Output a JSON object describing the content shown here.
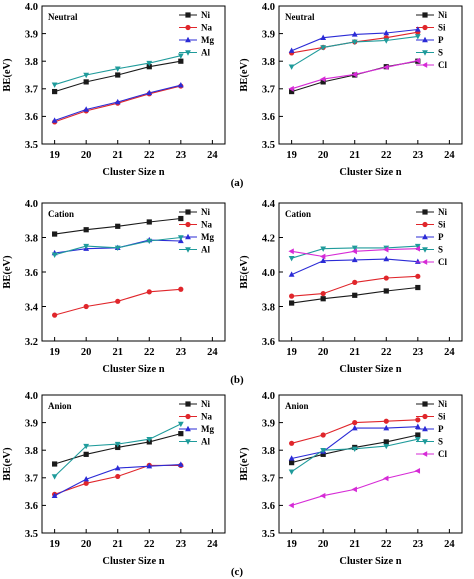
{
  "colors": {
    "Ni": "#1a1a1a",
    "Na": "#e0262b",
    "Mg": "#2b2bd6",
    "Al": "#1f9b9b",
    "Si": "#e0262b",
    "P": "#2b2bd6",
    "S": "#1f9b9b",
    "Cl": "#d62ad6"
  },
  "markers": {
    "Ni": "square",
    "Na": "circle",
    "Si": "circle",
    "Mg": "triangle-up",
    "P": "triangle-up",
    "Al": "triangle-down",
    "S": "triangle-down",
    "Cl": "triangle-left"
  },
  "section_labels": [
    "(a)",
    "(b)",
    "(c)"
  ],
  "chart_data": [
    {
      "type": "line",
      "panel_label": "Neutral",
      "xlabel": "Cluster Size n",
      "ylabel": "BE(eV)",
      "xlim": [
        18.6,
        24.4
      ],
      "xticks": [
        "19",
        "20",
        "21",
        "22",
        "23",
        "24"
      ],
      "ylim": [
        3.5,
        4.0
      ],
      "yticks": [
        "3.5",
        "3.6",
        "3.7",
        "3.8",
        "3.9",
        "4.0"
      ],
      "legend_position": "top-right",
      "x": [
        19,
        20,
        21,
        22,
        23
      ],
      "series": [
        {
          "name": "Ni",
          "values": [
            3.69,
            3.725,
            3.75,
            3.78,
            3.8
          ]
        },
        {
          "name": "Na",
          "values": [
            3.58,
            3.62,
            3.648,
            3.682,
            3.71
          ]
        },
        {
          "name": "Mg",
          "values": [
            3.585,
            3.625,
            3.652,
            3.685,
            3.713
          ]
        },
        {
          "name": "Al",
          "values": [
            3.715,
            3.75,
            3.773,
            3.793,
            3.82
          ]
        }
      ]
    },
    {
      "type": "line",
      "panel_label": "Neutral",
      "xlabel": "Cluster Size n",
      "ylabel": "BE(eV)",
      "xlim": [
        18.6,
        24.4
      ],
      "xticks": [
        "19",
        "20",
        "21",
        "22",
        "23",
        "24"
      ],
      "ylim": [
        3.5,
        4.0
      ],
      "yticks": [
        "3.5",
        "3.6",
        "3.7",
        "3.8",
        "3.9",
        "4.0"
      ],
      "legend_position": "top-right",
      "x": [
        19,
        20,
        21,
        22,
        23
      ],
      "series": [
        {
          "name": "Ni",
          "values": [
            3.69,
            3.725,
            3.75,
            3.78,
            3.8
          ]
        },
        {
          "name": "Si",
          "values": [
            3.83,
            3.85,
            3.87,
            3.885,
            3.905
          ]
        },
        {
          "name": "P",
          "values": [
            3.838,
            3.885,
            3.897,
            3.902,
            3.915
          ]
        },
        {
          "name": "S",
          "values": [
            3.78,
            3.85,
            3.87,
            3.875,
            3.89
          ]
        },
        {
          "name": "Cl",
          "values": [
            3.7,
            3.735,
            3.752,
            3.778,
            3.802
          ]
        }
      ]
    },
    {
      "type": "line",
      "panel_label": "Cation",
      "xlabel": "Cluster Size n",
      "ylabel": "BE(eV)",
      "xlim": [
        18.6,
        24.4
      ],
      "xticks": [
        "19",
        "20",
        "21",
        "22",
        "23",
        "24"
      ],
      "ylim": [
        3.2,
        4.0
      ],
      "yticks": [
        "3.2",
        "3.4",
        "3.6",
        "3.8",
        "4.0"
      ],
      "legend_position": "top-right",
      "x": [
        19,
        20,
        21,
        22,
        23
      ],
      "series": [
        {
          "name": "Ni",
          "values": [
            3.82,
            3.845,
            3.865,
            3.89,
            3.91
          ]
        },
        {
          "name": "Na",
          "values": [
            3.35,
            3.4,
            3.43,
            3.485,
            3.5
          ]
        },
        {
          "name": "Mg",
          "values": [
            3.71,
            3.735,
            3.74,
            3.785,
            3.78
          ]
        },
        {
          "name": "Al",
          "values": [
            3.7,
            3.75,
            3.74,
            3.78,
            3.8
          ]
        }
      ]
    },
    {
      "type": "line",
      "panel_label": "Cation",
      "xlabel": "Cluster Size n",
      "ylabel": "BE(eV)",
      "xlim": [
        18.6,
        24.4
      ],
      "xticks": [
        "19",
        "20",
        "21",
        "22",
        "23",
        "24"
      ],
      "ylim": [
        3.6,
        4.4
      ],
      "yticks": [
        "3.6",
        "3.8",
        "4.0",
        "4.2",
        "4.4"
      ],
      "legend_position": "top-right",
      "x": [
        19,
        20,
        21,
        22,
        23
      ],
      "series": [
        {
          "name": "Ni",
          "values": [
            3.82,
            3.845,
            3.865,
            3.89,
            3.91
          ]
        },
        {
          "name": "Si",
          "values": [
            3.86,
            3.875,
            3.94,
            3.965,
            3.975
          ]
        },
        {
          "name": "P",
          "values": [
            3.985,
            4.065,
            4.07,
            4.075,
            4.06
          ]
        },
        {
          "name": "S",
          "values": [
            4.08,
            4.135,
            4.14,
            4.14,
            4.15
          ]
        },
        {
          "name": "Cl",
          "values": [
            4.12,
            4.09,
            4.12,
            4.13,
            4.135
          ]
        }
      ]
    },
    {
      "type": "line",
      "panel_label": "Anion",
      "xlabel": "Cluster Size n",
      "ylabel": "BE(eV)",
      "xlim": [
        18.6,
        24.4
      ],
      "xticks": [
        "19",
        "20",
        "21",
        "22",
        "23",
        "24"
      ],
      "ylim": [
        3.5,
        4.0
      ],
      "yticks": [
        "3.5",
        "3.6",
        "3.7",
        "3.8",
        "3.9",
        "4.0"
      ],
      "legend_position": "top-right",
      "x": [
        19,
        20,
        21,
        22,
        23
      ],
      "series": [
        {
          "name": "Ni",
          "values": [
            3.75,
            3.785,
            3.81,
            3.83,
            3.86
          ]
        },
        {
          "name": "Na",
          "values": [
            3.64,
            3.68,
            3.705,
            3.745,
            3.745
          ]
        },
        {
          "name": "Mg",
          "values": [
            3.635,
            3.695,
            3.735,
            3.742,
            3.748
          ]
        },
        {
          "name": "Al",
          "values": [
            3.705,
            3.815,
            3.822,
            3.84,
            3.895
          ]
        }
      ]
    },
    {
      "type": "line",
      "panel_label": "Anion",
      "xlabel": "Cluster Size n",
      "ylabel": "BE(eV)",
      "xlim": [
        18.6,
        24.4
      ],
      "xticks": [
        "19",
        "20",
        "21",
        "22",
        "23",
        "24"
      ],
      "ylim": [
        3.5,
        4.0
      ],
      "yticks": [
        "3.5",
        "3.6",
        "3.7",
        "3.8",
        "3.9",
        "4.0"
      ],
      "legend_position": "top-right",
      "x": [
        19,
        20,
        21,
        22,
        23
      ],
      "series": [
        {
          "name": "Ni",
          "values": [
            3.755,
            3.785,
            3.81,
            3.83,
            3.855
          ]
        },
        {
          "name": "Si",
          "values": [
            3.825,
            3.855,
            3.9,
            3.905,
            3.91
          ]
        },
        {
          "name": "P",
          "values": [
            3.77,
            3.795,
            3.88,
            3.88,
            3.885
          ]
        },
        {
          "name": "S",
          "values": [
            3.722,
            3.8,
            3.805,
            3.815,
            3.84
          ]
        },
        {
          "name": "Cl",
          "values": [
            3.6,
            3.635,
            3.658,
            3.698,
            3.725
          ]
        }
      ]
    }
  ]
}
